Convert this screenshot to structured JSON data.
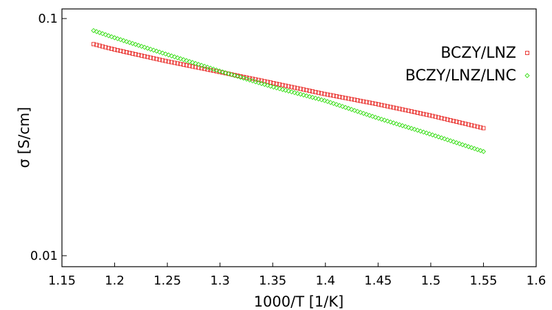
{
  "chart_data": {
    "type": "scatter",
    "xlabel": "1000/T [1/K]",
    "ylabel": "σ [S/cm]",
    "xlim": [
      1.15,
      1.6
    ],
    "ylim": [
      0.01,
      0.1
    ],
    "yscale": "log",
    "xticks": [
      "1.15",
      "1.2",
      "1.25",
      "1.3",
      "1.35",
      "1.4",
      "1.45",
      "1.5",
      "1.55",
      "1.6"
    ],
    "xtick_values": [
      1.15,
      1.2,
      1.25,
      1.3,
      1.35,
      1.4,
      1.45,
      1.5,
      1.55,
      1.6
    ],
    "yticks": [
      "0.01",
      "0.1"
    ],
    "ytick_values": [
      0.01,
      0.1
    ],
    "grid": false,
    "legend_position": "top-right",
    "series": [
      {
        "name": "BCZY/LNZ",
        "color": "#e8231f",
        "marker": "square",
        "x": [
          1.18,
          1.2,
          1.25,
          1.3,
          1.35,
          1.4,
          1.45,
          1.5,
          1.55
        ],
        "y": [
          0.078,
          0.074,
          0.066,
          0.0595,
          0.0535,
          0.048,
          0.0435,
          0.039,
          0.0345
        ]
      },
      {
        "name": "BCZY/LNZ/LNC",
        "color": "#33dd11",
        "marker": "diamond",
        "x": [
          1.18,
          1.2,
          1.25,
          1.3,
          1.35,
          1.4,
          1.45,
          1.5,
          1.55
        ],
        "y": [
          0.089,
          0.083,
          0.0705,
          0.06,
          0.0515,
          0.045,
          0.038,
          0.0325,
          0.0275
        ]
      }
    ]
  }
}
